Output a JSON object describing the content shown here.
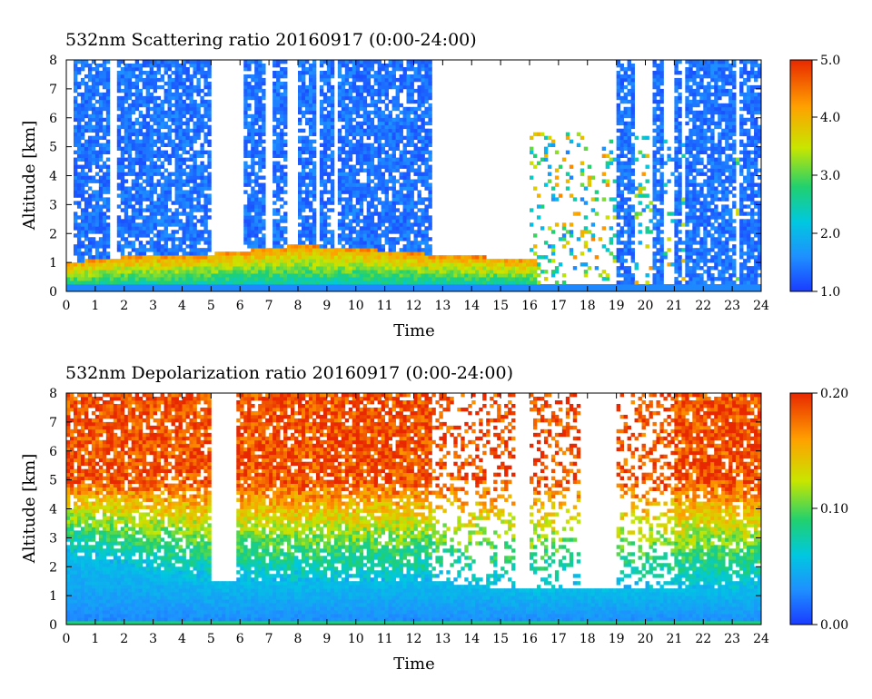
{
  "charts": [
    {
      "title": "532nm Scattering ratio  20160917 (0:00-24:00)",
      "xlabel": "Time",
      "ylabel": "Altitude [km]",
      "colorbar_labels": [
        "5.0",
        "4.0",
        "3.0",
        "2.0",
        "1.0"
      ]
    },
    {
      "title": "532nm Depolarization ratio  20160917 (0:00-24:00)",
      "xlabel": "Time",
      "ylabel": "Altitude [km]",
      "colorbar_labels": [
        "0.20",
        "0.10",
        "0.00"
      ]
    }
  ],
  "chart_data": [
    {
      "type": "heatmap",
      "title": "532nm Scattering ratio  20160917 (0:00-24:00)",
      "xlabel": "Time",
      "ylabel": "Altitude [km]",
      "xlim": [
        0,
        24
      ],
      "ylim": [
        0,
        8
      ],
      "x_ticks": [
        0,
        1,
        2,
        3,
        4,
        5,
        6,
        7,
        8,
        9,
        10,
        11,
        12,
        13,
        14,
        15,
        16,
        17,
        18,
        19,
        20,
        21,
        22,
        23,
        24
      ],
      "y_ticks": [
        0,
        1,
        2,
        3,
        4,
        5,
        6,
        7,
        8
      ],
      "colorbar": {
        "min": 1.0,
        "max": 5.0,
        "ticks": [
          1.0,
          2.0,
          3.0,
          4.0,
          5.0
        ]
      },
      "colormap": [
        "#1a3cff",
        "#1e90ff",
        "#00c8e0",
        "#20d070",
        "#c8e600",
        "#ffa000",
        "#e82800"
      ],
      "features": {
        "boundary_layer_top_km": [
          [
            0,
            1.0
          ],
          [
            2,
            1.2
          ],
          [
            5,
            1.3
          ],
          [
            8,
            1.6
          ],
          [
            10,
            1.5
          ],
          [
            12.5,
            1.3
          ],
          [
            16,
            1.1
          ]
        ],
        "clear_gaps_h": [
          [
            1.5,
            1.7
          ],
          [
            5.0,
            5.9
          ],
          [
            12.6,
            16.0
          ]
        ],
        "cloud_columns_h": [
          [
            0.3,
            1.5
          ],
          [
            1.7,
            5.0
          ],
          [
            6.1,
            6.9
          ],
          [
            7.1,
            7.6
          ],
          [
            8.0,
            8.6
          ],
          [
            8.8,
            9.2
          ],
          [
            9.4,
            12.6
          ],
          [
            19.0,
            19.6
          ],
          [
            20.3,
            20.6
          ],
          [
            21.0,
            21.3
          ],
          [
            21.4,
            23.1
          ],
          [
            23.3,
            24.0
          ]
        ]
      }
    },
    {
      "type": "heatmap",
      "title": "532nm Depolarization ratio  20160917 (0:00-24:00)",
      "xlabel": "Time",
      "ylabel": "Altitude [km]",
      "xlim": [
        0,
        24
      ],
      "ylim": [
        0,
        8
      ],
      "x_ticks": [
        0,
        1,
        2,
        3,
        4,
        5,
        6,
        7,
        8,
        9,
        10,
        11,
        12,
        13,
        14,
        15,
        16,
        17,
        18,
        19,
        20,
        21,
        22,
        23,
        24
      ],
      "y_ticks": [
        0,
        1,
        2,
        3,
        4,
        5,
        6,
        7,
        8
      ],
      "colorbar": {
        "min": 0.0,
        "max": 0.2,
        "ticks": [
          0.0,
          0.1,
          0.2
        ]
      },
      "colormap": [
        "#1a3cff",
        "#1e90ff",
        "#00c8e0",
        "#20d070",
        "#c8e600",
        "#ffa000",
        "#e82800"
      ],
      "features": {
        "low_depol_layer_top_km": [
          [
            0,
            2.5
          ],
          [
            5,
            1.5
          ],
          [
            12.5,
            1.5
          ],
          [
            16,
            1.2
          ]
        ],
        "high_depol_above_km": 5.0,
        "clear_gaps_h": [
          [
            5.0,
            5.9
          ],
          [
            15.5,
            16.0
          ],
          [
            17.8,
            19.0
          ]
        ]
      }
    }
  ]
}
